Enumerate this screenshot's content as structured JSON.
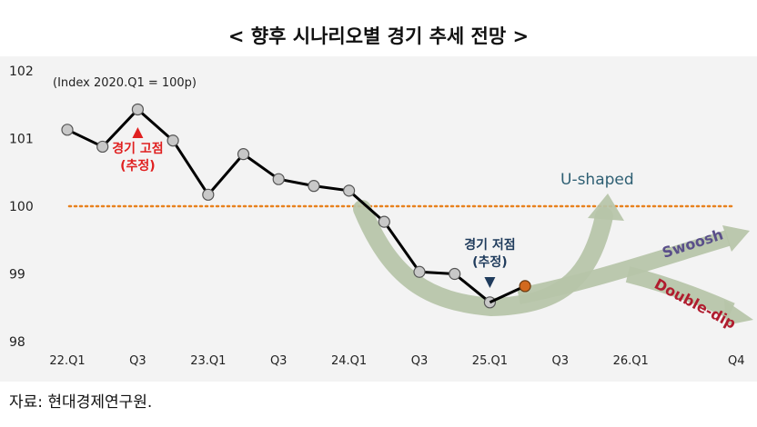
{
  "title": "< 향후 시나리오별 경기 추세 전망 >",
  "source": "자료: 현대경제연구원.",
  "chart_data": {
    "type": "line",
    "index_note": "(Index 2020.Q1 = 100p)",
    "x_tick_labels": [
      "22.Q1",
      "Q3",
      "23.Q1",
      "Q3",
      "24.Q1",
      "Q3",
      "25.Q1",
      "Q3",
      "26.Q1",
      "Q4"
    ],
    "x_tick_index": [
      0,
      2,
      4,
      6,
      8,
      10,
      12,
      14,
      16,
      19
    ],
    "ylim": [
      98,
      102
    ],
    "y_ticks": [
      98,
      99,
      100,
      101,
      102
    ],
    "grid": false,
    "reference_line": {
      "value": 100
    },
    "series": [
      {
        "x": [
          0,
          1,
          2,
          3,
          4,
          5,
          6,
          7,
          8,
          9,
          10,
          11,
          12
        ],
        "values": [
          101.13,
          100.88,
          101.43,
          100.97,
          100.17,
          100.77,
          100.4,
          100.3,
          100.23,
          99.77,
          99.03,
          99.0,
          98.58
        ]
      }
    ],
    "latest_point": {
      "x": 13,
      "value": 98.82,
      "color": "#d2691e"
    },
    "annotations": {
      "peak": {
        "line1": "경기 고점",
        "line2": "(추정)",
        "x": 2,
        "color": "#e02020"
      },
      "trough": {
        "line1": "경기 저점",
        "line2": "(추정)",
        "x": 12,
        "color": "#1f3b5c"
      }
    },
    "scenarios": [
      {
        "name": "U-shaped",
        "color": "#2e5f73"
      },
      {
        "name": "Swoosh",
        "color": "#5a4f8a"
      },
      {
        "name": "Double-dip",
        "color": "#b01c2e"
      }
    ],
    "colors": {
      "line": "#000000",
      "marker": "#c8c8c8",
      "reference": "#e8821e",
      "arrow": "#b6c4a8"
    }
  }
}
